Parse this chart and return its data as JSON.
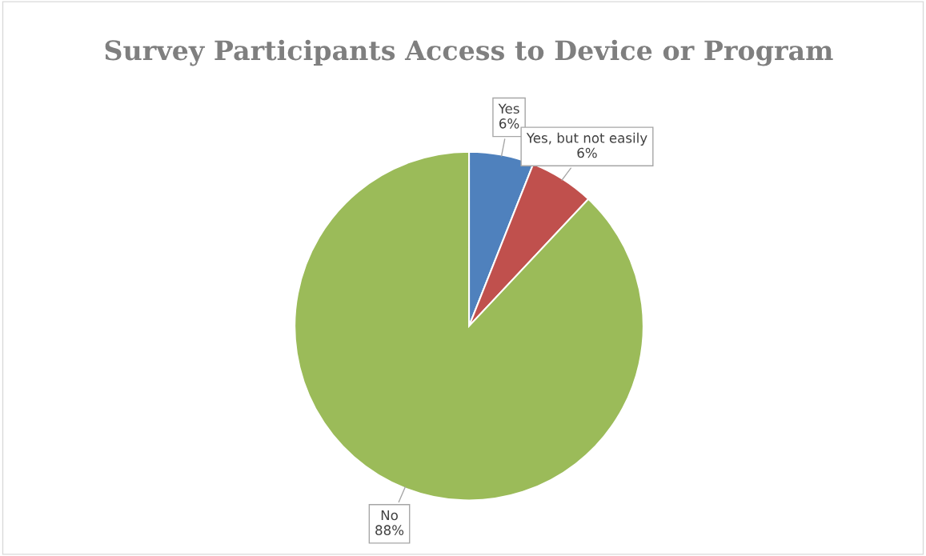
{
  "chart_data": {
    "type": "pie",
    "title": "Survey Participants Access to Device or Program",
    "categories": [
      "Yes",
      "Yes, but not easily",
      "No"
    ],
    "values": [
      6,
      6,
      88
    ],
    "value_labels": [
      "6%",
      "6%",
      "88%"
    ],
    "colors": [
      "#4f81bd",
      "#c0504d",
      "#9bbb59"
    ]
  }
}
